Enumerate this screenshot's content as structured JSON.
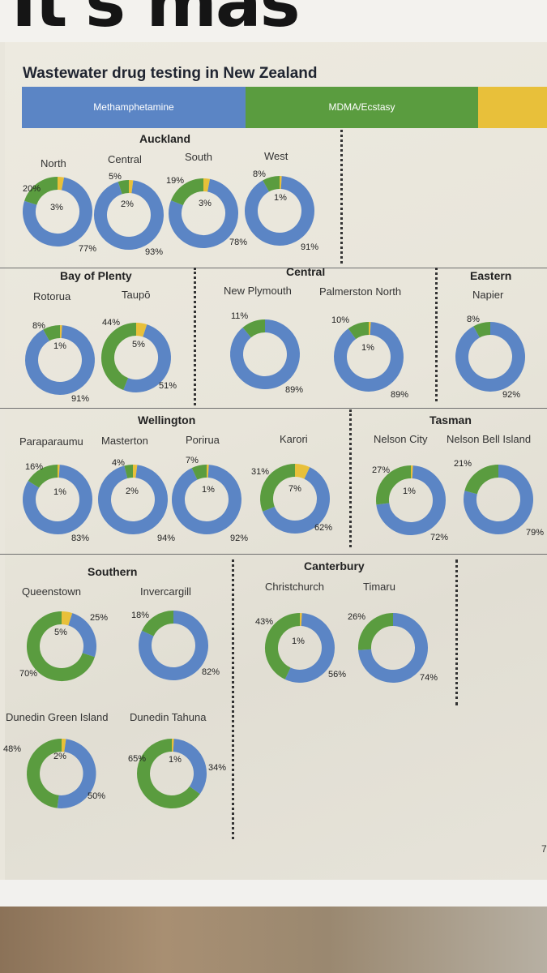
{
  "header": {
    "masthead_text": "It's mas",
    "title": "Wastewater drug testing in New Zealand"
  },
  "legend": [
    {
      "label": "Methamphetamine",
      "color": "#5b85c5"
    },
    {
      "label": "MDMA/Ecstasy",
      "color": "#5a9c3f"
    },
    {
      "label": "",
      "color": "#e8c03a"
    }
  ],
  "colors": {
    "meth": "#5b85c5",
    "mdma": "#5a9c3f",
    "other": "#e8c03a"
  },
  "regions": [
    {
      "id": "auckland",
      "name": "Auckland"
    },
    {
      "id": "bay-of-plenty",
      "name": "Bay of Plenty"
    },
    {
      "id": "central",
      "name": "Central"
    },
    {
      "id": "eastern",
      "name": "Eastern"
    },
    {
      "id": "wellington",
      "name": "Wellington"
    },
    {
      "id": "tasman",
      "name": "Tasman"
    },
    {
      "id": "southern",
      "name": "Southern"
    },
    {
      "id": "canterbury",
      "name": "Canterbury"
    }
  ],
  "chart_data": {
    "type": "pie",
    "title": "Wastewater drug testing in New Zealand",
    "legend": [
      "Methamphetamine",
      "MDMA/Ecstasy"
    ],
    "series": [
      {
        "region": "Auckland",
        "name": "North",
        "meth": 77,
        "mdma": 20,
        "other": 3,
        "labels": {
          "meth": "77%",
          "mdma": "20%",
          "other": "3%"
        }
      },
      {
        "region": "Auckland",
        "name": "Central",
        "meth": 93,
        "mdma": 5,
        "other": 2,
        "labels": {
          "meth": "93%",
          "mdma": "5%",
          "other": "2%"
        }
      },
      {
        "region": "Auckland",
        "name": "South",
        "meth": 78,
        "mdma": 19,
        "other": 3,
        "labels": {
          "meth": "78%",
          "mdma": "19%",
          "other": "3%"
        }
      },
      {
        "region": "Auckland",
        "name": "West",
        "meth": 91,
        "mdma": 8,
        "other": 1,
        "labels": {
          "meth": "91%",
          "mdma": "8%",
          "other": "1%"
        }
      },
      {
        "region": "Bay of Plenty",
        "name": "Rotorua",
        "meth": 91,
        "mdma": 8,
        "other": 1,
        "labels": {
          "meth": "91%",
          "mdma": "8%",
          "other": "1%"
        }
      },
      {
        "region": "Bay of Plenty",
        "name": "Taupō",
        "meth": 51,
        "mdma": 44,
        "other": 5,
        "labels": {
          "meth": "51%",
          "mdma": "44%",
          "other": "5%"
        }
      },
      {
        "region": "Central",
        "name": "New Plymouth",
        "meth": 89,
        "mdma": 11,
        "other": 0,
        "labels": {
          "meth": "89%",
          "mdma": "11%",
          "other": ""
        }
      },
      {
        "region": "Central",
        "name": "Palmerston North",
        "meth": 89,
        "mdma": 10,
        "other": 1,
        "labels": {
          "meth": "89%",
          "mdma": "10%",
          "other": "1%"
        }
      },
      {
        "region": "Eastern",
        "name": "Napier",
        "meth": 92,
        "mdma": 8,
        "other": 0,
        "labels": {
          "meth": "92%",
          "mdma": "8%",
          "other": ""
        }
      },
      {
        "region": "Wellington",
        "name": "Paraparaumu",
        "meth": 83,
        "mdma": 16,
        "other": 1,
        "labels": {
          "meth": "83%",
          "mdma": "16%",
          "other": "1%"
        }
      },
      {
        "region": "Wellington",
        "name": "Masterton",
        "meth": 94,
        "mdma": 4,
        "other": 2,
        "labels": {
          "meth": "94%",
          "mdma": "4%",
          "other": "2%"
        }
      },
      {
        "region": "Wellington",
        "name": "Porirua",
        "meth": 92,
        "mdma": 7,
        "other": 1,
        "labels": {
          "meth": "92%",
          "mdma": "7%",
          "other": "1%"
        }
      },
      {
        "region": "Wellington",
        "name": "Karori",
        "meth": 62,
        "mdma": 31,
        "other": 7,
        "labels": {
          "meth": "62%",
          "mdma": "31%",
          "other": "7%"
        }
      },
      {
        "region": "Tasman",
        "name": "Nelson City",
        "meth": 72,
        "mdma": 27,
        "other": 1,
        "labels": {
          "meth": "72%",
          "mdma": "27%",
          "other": "1%"
        }
      },
      {
        "region": "Tasman",
        "name": "Nelson Bell Island",
        "meth": 79,
        "mdma": 21,
        "other": 0,
        "labels": {
          "meth": "79%",
          "mdma": "21%",
          "other": ""
        }
      },
      {
        "region": "Southern",
        "name": "Queenstown",
        "meth": 25,
        "mdma": 70,
        "other": 5,
        "labels": {
          "meth": "25%",
          "mdma": "70%",
          "other": "5%"
        }
      },
      {
        "region": "Southern",
        "name": "Invercargill",
        "meth": 82,
        "mdma": 18,
        "other": 0,
        "labels": {
          "meth": "82%",
          "mdma": "18%",
          "other": ""
        }
      },
      {
        "region": "Canterbury",
        "name": "Christchurch",
        "meth": 56,
        "mdma": 43,
        "other": 1,
        "labels": {
          "meth": "56%",
          "mdma": "43%",
          "other": "1%"
        }
      },
      {
        "region": "Canterbury",
        "name": "Timaru",
        "meth": 74,
        "mdma": 26,
        "other": 0,
        "labels": {
          "meth": "74%",
          "mdma": "26%",
          "other": ""
        }
      },
      {
        "region": "Southern",
        "name": "Dunedin Green Island",
        "meth": 50,
        "mdma": 48,
        "other": 2,
        "labels": {
          "meth": "50%",
          "mdma": "48%",
          "other": "2%"
        }
      },
      {
        "region": "Southern",
        "name": "Dunedin Tahuna",
        "meth": 34,
        "mdma": 65,
        "other": 1,
        "labels": {
          "meth": "34%",
          "mdma": "65%",
          "other": "1%"
        }
      }
    ]
  },
  "page_number": "7"
}
